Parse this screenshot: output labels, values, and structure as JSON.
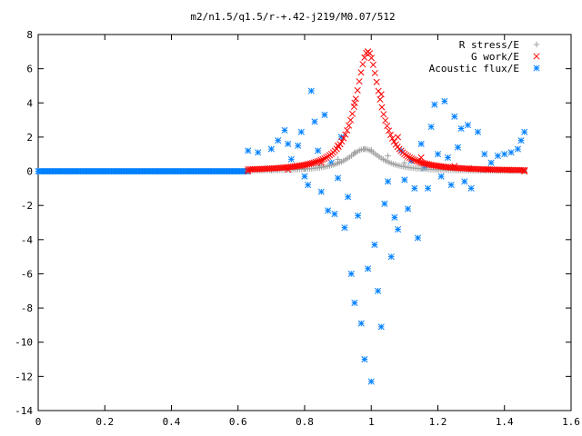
{
  "chart_data": {
    "type": "scatter",
    "title": "m2/n1.5/q1.5/r-+.42-j219/M0.07/512",
    "xlabel": "",
    "ylabel": "",
    "xlim": [
      0,
      1.6
    ],
    "ylim": [
      -14,
      8
    ],
    "xticks": [
      "0",
      "0.2",
      "0.4",
      "0.6",
      "0.8",
      "1",
      "1.2",
      "1.4",
      "1.6"
    ],
    "yticks": [
      "8",
      "6",
      "4",
      "2",
      "0",
      "-2",
      "-4",
      "-6",
      "-8",
      "-10",
      "-12",
      "-14"
    ],
    "grid": false,
    "legend_position": "top-right",
    "series": [
      {
        "name": "R stress/E",
        "marker": "plus",
        "color": "#a0a0a0",
        "curve": {
          "x_range": [
            0.63,
            1.46
          ],
          "count": 140,
          "peak_x": 0.98,
          "peak_y": 1.3,
          "width": 0.06,
          "tail_y": 0.0
        },
        "points": [
          [
            0.63,
            0.0
          ],
          [
            0.7,
            0.05
          ],
          [
            0.8,
            0.15
          ],
          [
            0.85,
            0.3
          ],
          [
            0.9,
            0.7
          ],
          [
            0.95,
            1.1
          ],
          [
            0.98,
            1.3
          ],
          [
            1.0,
            1.25
          ],
          [
            1.05,
            0.9
          ],
          [
            1.1,
            0.5
          ],
          [
            1.15,
            0.35
          ],
          [
            1.2,
            0.3
          ],
          [
            1.3,
            0.2
          ],
          [
            1.4,
            0.1
          ],
          [
            1.46,
            0.0
          ]
        ]
      },
      {
        "name": "G work/E",
        "marker": "cross",
        "color": "#ff0000",
        "curve": {
          "x_range": [
            0.63,
            1.46
          ],
          "count": 160,
          "peak_x": 0.99,
          "peak_y": 7.0,
          "width": 0.045,
          "tail_y": 0.0
        },
        "points": [
          [
            0.63,
            0.0
          ],
          [
            0.75,
            0.1
          ],
          [
            0.85,
            0.5
          ],
          [
            0.9,
            1.5
          ],
          [
            0.95,
            4.0
          ],
          [
            0.99,
            7.0
          ],
          [
            1.03,
            4.5
          ],
          [
            1.08,
            2.0
          ],
          [
            1.15,
            0.8
          ],
          [
            1.25,
            0.3
          ],
          [
            1.35,
            0.1
          ],
          [
            1.46,
            0.0
          ]
        ]
      },
      {
        "name": "Acoustic flux/E",
        "marker": "star",
        "color": "#0080ff",
        "baseline_x_range": [
          0.0,
          0.63
        ],
        "baseline_y": 0.0,
        "points": [
          [
            0.63,
            1.2
          ],
          [
            0.66,
            1.1
          ],
          [
            0.7,
            1.3
          ],
          [
            0.72,
            1.8
          ],
          [
            0.74,
            2.4
          ],
          [
            0.75,
            1.6
          ],
          [
            0.76,
            0.7
          ],
          [
            0.78,
            1.5
          ],
          [
            0.79,
            2.3
          ],
          [
            0.8,
            -0.3
          ],
          [
            0.81,
            -0.8
          ],
          [
            0.82,
            4.7
          ],
          [
            0.83,
            2.9
          ],
          [
            0.84,
            1.2
          ],
          [
            0.85,
            -1.2
          ],
          [
            0.86,
            3.3
          ],
          [
            0.87,
            -2.3
          ],
          [
            0.88,
            0.5
          ],
          [
            0.89,
            -2.5
          ],
          [
            0.9,
            -0.4
          ],
          [
            0.91,
            2.0
          ],
          [
            0.92,
            -3.3
          ],
          [
            0.93,
            -1.5
          ],
          [
            0.94,
            -6.0
          ],
          [
            0.95,
            -7.7
          ],
          [
            0.96,
            -2.6
          ],
          [
            0.97,
            -8.9
          ],
          [
            0.98,
            -11.0
          ],
          [
            0.99,
            -5.7
          ],
          [
            1.0,
            -12.3
          ],
          [
            1.01,
            -4.3
          ],
          [
            1.02,
            -7.0
          ],
          [
            1.03,
            -9.1
          ],
          [
            1.04,
            -1.9
          ],
          [
            1.05,
            -0.6
          ],
          [
            1.06,
            -5.0
          ],
          [
            1.07,
            -2.7
          ],
          [
            1.08,
            -3.4
          ],
          [
            1.09,
            1.2
          ],
          [
            1.1,
            -0.5
          ],
          [
            1.11,
            -2.2
          ],
          [
            1.12,
            0.6
          ],
          [
            1.13,
            -1.0
          ],
          [
            1.14,
            -3.9
          ],
          [
            1.15,
            1.6
          ],
          [
            1.16,
            0.2
          ],
          [
            1.17,
            -1.0
          ],
          [
            1.18,
            2.6
          ],
          [
            1.19,
            3.9
          ],
          [
            1.2,
            1.0
          ],
          [
            1.21,
            -0.3
          ],
          [
            1.22,
            4.1
          ],
          [
            1.23,
            0.8
          ],
          [
            1.24,
            -0.8
          ],
          [
            1.25,
            3.2
          ],
          [
            1.26,
            1.4
          ],
          [
            1.27,
            2.5
          ],
          [
            1.28,
            -0.6
          ],
          [
            1.29,
            2.7
          ],
          [
            1.3,
            -1.0
          ],
          [
            1.32,
            2.3
          ],
          [
            1.34,
            1.0
          ],
          [
            1.36,
            0.5
          ],
          [
            1.38,
            0.9
          ],
          [
            1.4,
            1.0
          ],
          [
            1.42,
            1.1
          ],
          [
            1.44,
            1.3
          ],
          [
            1.45,
            1.8
          ],
          [
            1.46,
            2.3
          ]
        ]
      }
    ]
  }
}
